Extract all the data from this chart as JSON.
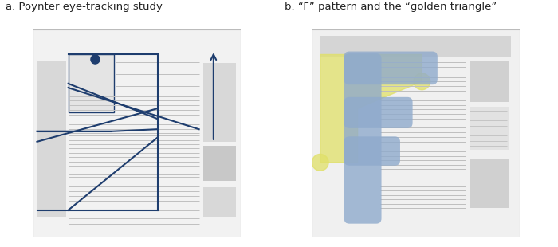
{
  "title_a": "a. Poynter eye-tracking study",
  "title_b": "b. “F” pattern and the “golden triangle”",
  "bg_color": "#ffffff",
  "line_color": "#1e3d6e",
  "gray_light": "#d8d8d8",
  "gray_medium": "#c8c8c8",
  "panel_bg": "#f0f0f0",
  "yellow_color": "#e8e87a",
  "blue_color": "#8faacc",
  "text_line_color": "#b8b8b8"
}
